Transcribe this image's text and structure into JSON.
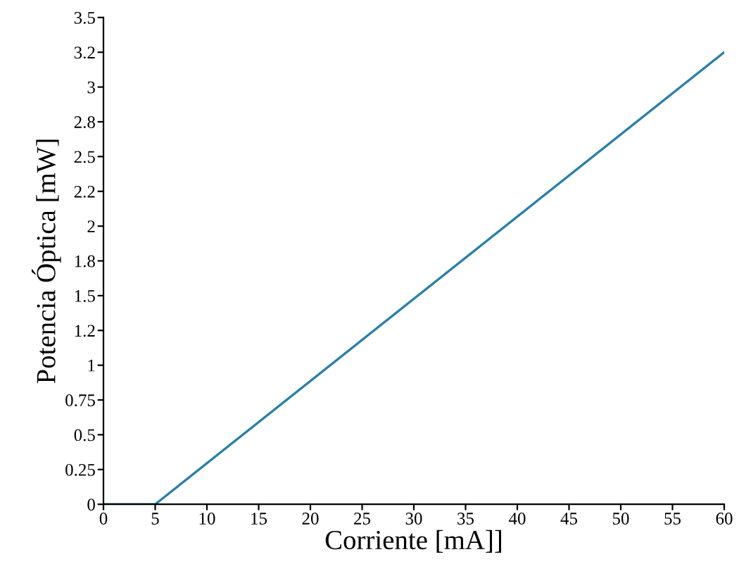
{
  "chart_data": {
    "type": "line",
    "xlabel": "Corriente [mA]]",
    "ylabel": "Potencia Óptica [mW]",
    "series": [
      {
        "color": "#2a7fa8",
        "x": [
          0,
          5,
          60
        ],
        "values": [
          0,
          0,
          3.25
        ]
      }
    ],
    "xlim": [
      0,
      60
    ],
    "ylim": [
      0,
      3.5
    ],
    "xticks": [
      0,
      5,
      10,
      15,
      20,
      25,
      30,
      35,
      40,
      45,
      50,
      55,
      60
    ],
    "yticks": [
      0,
      0.25,
      0.5,
      0.75,
      1,
      {
        "value": 1.25,
        "label": "1.2"
      },
      1.5,
      {
        "value": 1.75,
        "label": "1.8"
      },
      2,
      {
        "value": 2.25,
        "label": "2.2"
      },
      2.5,
      {
        "value": 2.75,
        "label": "2.8"
      },
      3,
      {
        "value": 3.25,
        "label": "3.2"
      },
      3.5
    ],
    "grid": false,
    "legend": false
  }
}
